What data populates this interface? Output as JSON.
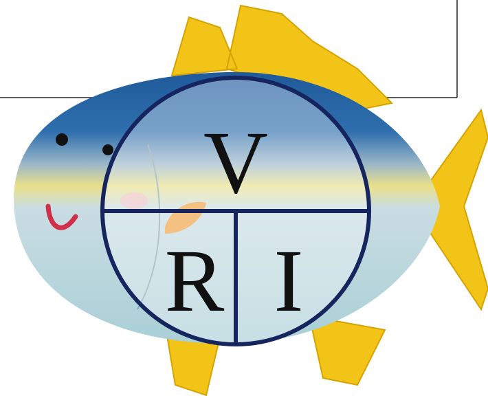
{
  "diagram": {
    "top": "V",
    "bottom_left": "R",
    "bottom_right": "I"
  }
}
